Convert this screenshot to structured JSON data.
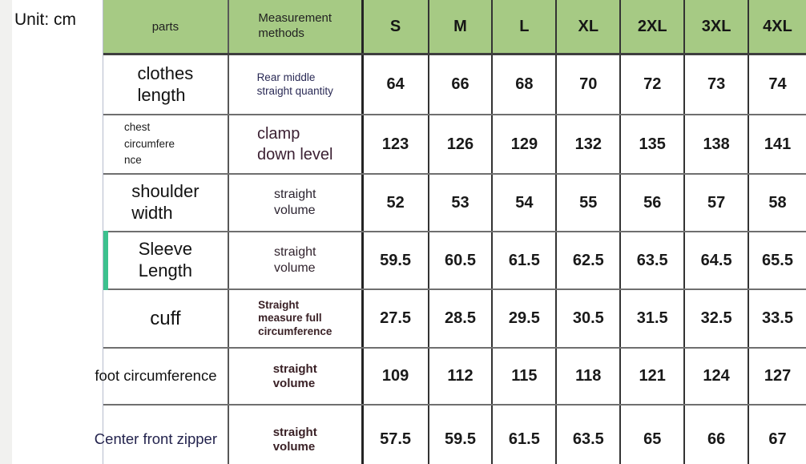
{
  "unit_label": "Unit: cm",
  "colors": {
    "header_green": "#a6ca84",
    "accent_green": "#3cc18e",
    "left_gutter_gray": "#f1f1ef",
    "table_left_border": "#b7bccd"
  },
  "table": {
    "header": {
      "parts": "parts",
      "methods": [
        "Measurement",
        "methods"
      ],
      "sizes": [
        "S",
        "M",
        "L",
        "XL",
        "2XL",
        "3XL",
        "4XL"
      ]
    },
    "rows": [
      {
        "part": [
          "clothes",
          "length"
        ],
        "method": [
          "Rear middle",
          "straight quantity"
        ],
        "values": [
          "64",
          "66",
          "68",
          "70",
          "72",
          "73",
          "74"
        ]
      },
      {
        "part": [
          "chest",
          "circumfere",
          "nce"
        ],
        "method": [
          "clamp",
          "down level"
        ],
        "values": [
          "123",
          "126",
          "129",
          "132",
          "135",
          "138",
          "141"
        ]
      },
      {
        "part": [
          "shoulder",
          "width"
        ],
        "method": [
          "straight",
          "volume"
        ],
        "values": [
          "52",
          "53",
          "54",
          "55",
          "56",
          "57",
          "58"
        ]
      },
      {
        "part": [
          "Sleeve",
          "Length"
        ],
        "method": [
          "straight",
          "volume"
        ],
        "values": [
          "59.5",
          "60.5",
          "61.5",
          "62.5",
          "63.5",
          "64.5",
          "65.5"
        ]
      },
      {
        "part": [
          "cuff"
        ],
        "method": [
          "Straight",
          "measure full",
          "circumference"
        ],
        "values": [
          "27.5",
          "28.5",
          "29.5",
          "30.5",
          "31.5",
          "32.5",
          "33.5"
        ]
      },
      {
        "part": [
          "foot circumference"
        ],
        "method": [
          "straight",
          "volume"
        ],
        "values": [
          "109",
          "112",
          "115",
          "118",
          "121",
          "124",
          "127"
        ]
      },
      {
        "part": [
          "Center front zipper"
        ],
        "method": [
          "straight",
          "volume"
        ],
        "values": [
          "57.5",
          "59.5",
          "61.5",
          "63.5",
          "65",
          "66",
          "67"
        ]
      }
    ]
  }
}
